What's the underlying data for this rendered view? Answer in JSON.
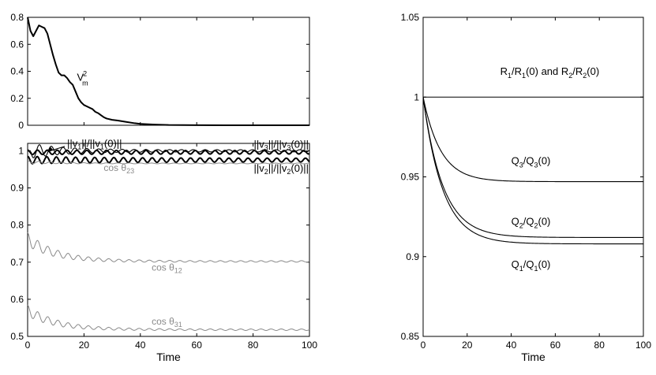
{
  "chart_data": [
    {
      "id": "top_left",
      "type": "line",
      "xlim": [
        0,
        100
      ],
      "ylim": [
        0,
        0.8
      ],
      "xticks": [
        0,
        20,
        40,
        60,
        80,
        100
      ],
      "xtick_labels": [
        "",
        "",
        "",
        "",
        "",
        ""
      ],
      "yticks": [
        0,
        0.2,
        0.4,
        0.6,
        0.8
      ],
      "ytick_labels": [
        "0",
        "0.2",
        "0.4",
        "0.6",
        "0.8"
      ],
      "xlabel": "",
      "ylabel": "",
      "grid": false,
      "series": [
        {
          "name": "V_m^2",
          "style": "thick-black",
          "x": [
            0,
            1,
            2,
            3,
            4,
            5,
            6,
            7,
            8,
            9,
            10,
            11,
            12,
            13,
            14,
            15,
            16,
            17,
            18,
            19,
            20,
            21,
            22,
            23,
            24,
            25,
            26,
            27,
            28,
            30,
            32,
            35,
            38,
            40,
            45,
            50,
            60,
            70,
            80,
            90,
            100
          ],
          "y": [
            0.8,
            0.7,
            0.66,
            0.7,
            0.74,
            0.73,
            0.72,
            0.68,
            0.6,
            0.52,
            0.45,
            0.39,
            0.37,
            0.37,
            0.35,
            0.32,
            0.3,
            0.25,
            0.2,
            0.17,
            0.15,
            0.14,
            0.13,
            0.12,
            0.1,
            0.09,
            0.075,
            0.06,
            0.05,
            0.04,
            0.035,
            0.025,
            0.015,
            0.01,
            0.005,
            0.002,
            0.001,
            0.0,
            0.0,
            0.0,
            0.0
          ]
        }
      ],
      "annotations": [
        {
          "id": "vm2",
          "base": "V",
          "sub": "m",
          "sup": "2",
          "x": 17.5,
          "y": 0.33,
          "style": "black"
        }
      ]
    },
    {
      "id": "bottom_left",
      "type": "line",
      "xlim": [
        0,
        100
      ],
      "ylim": [
        0.5,
        1.02
      ],
      "xticks": [
        0,
        20,
        40,
        60,
        80,
        100
      ],
      "xtick_labels": [
        "0",
        "20",
        "40",
        "60",
        "80",
        "100"
      ],
      "yticks": [
        0.5,
        0.6,
        0.7,
        0.8,
        0.9,
        1.0
      ],
      "ytick_labels": [
        "0.5",
        "0.6",
        "0.7",
        "0.8",
        "0.9",
        "1"
      ],
      "xlabel": "Time",
      "ylabel": "",
      "grid": false,
      "series": [
        {
          "name": "||v1||/||v1(0)||",
          "style": "black",
          "base": 1.0,
          "amp0": 0.022,
          "amp1": 0.003,
          "decay": 12,
          "period": 4.2,
          "x": [
            0,
            100
          ]
        },
        {
          "name": "||v3||/||v3(0)||",
          "style": "thick-black",
          "base": 0.996,
          "amp0": 0.006,
          "amp1": 0.0045,
          "decay": 40,
          "period": 3.5,
          "x": [
            0,
            100
          ]
        },
        {
          "name": "||v2||/||v2(0)||",
          "style": "thick-black",
          "base": 0.975,
          "amp0": 0.01,
          "amp1": 0.005,
          "decay": 30,
          "period": 3.4,
          "x": [
            0,
            100
          ]
        },
        {
          "name": "cos θ23",
          "style": "gray",
          "base": 0.966,
          "amp0": 0.004,
          "amp1": 0.001,
          "decay": 10,
          "period": 4,
          "x": [
            0,
            100
          ],
          "offset": [
            0.004,
            0.0
          ]
        },
        {
          "name": "cos θ12",
          "style": "gray",
          "base": 0.702,
          "amp0": 0.018,
          "amp1": 0.002,
          "decay": 14,
          "period": 3.6,
          "x": [
            0,
            100
          ],
          "offset": [
            0.06,
            0.0
          ]
        },
        {
          "name": "cos θ31",
          "style": "gray",
          "base": 0.518,
          "amp0": 0.015,
          "amp1": 0.002,
          "decay": 14,
          "period": 3.6,
          "x": [
            0,
            100
          ],
          "offset": [
            0.052,
            0.0
          ]
        }
      ],
      "annotations": [
        {
          "id": "v1",
          "text": "||v",
          "sub": "1",
          "tail": "||/||v",
          "sub2": "1",
          "tail2": "(0)||",
          "x": 14,
          "y": 1.01,
          "style": "black"
        },
        {
          "id": "v3",
          "text": "||v",
          "sub": "3",
          "tail": "||/||v",
          "sub2": "3",
          "tail2": "(0)||",
          "x": 90,
          "y": 1.008,
          "style": "black"
        },
        {
          "id": "v2",
          "text": "||v",
          "sub": "2",
          "tail": "||/||v",
          "sub2": "2",
          "tail2": "(0)||",
          "x": 90,
          "y": 0.944,
          "style": "black"
        },
        {
          "id": "c23",
          "text": "cos θ",
          "sub": "23",
          "x": 27,
          "y": 0.946,
          "style": "gray"
        },
        {
          "id": "c12",
          "text": "cos θ",
          "sub": "12",
          "x": 44,
          "y": 0.677,
          "style": "gray"
        },
        {
          "id": "c31",
          "text": "cos θ",
          "sub": "31",
          "x": 44,
          "y": 0.532,
          "style": "gray"
        }
      ]
    },
    {
      "id": "right",
      "type": "line",
      "xlim": [
        0,
        100
      ],
      "ylim": [
        0.85,
        1.05
      ],
      "xticks": [
        0,
        20,
        40,
        60,
        80,
        100
      ],
      "xtick_labels": [
        "0",
        "20",
        "40",
        "60",
        "80",
        "100"
      ],
      "yticks": [
        0.85,
        0.9,
        0.95,
        1.0,
        1.05
      ],
      "ytick_labels": [
        "0.85",
        "0.9",
        "0.95",
        "1",
        "1.05"
      ],
      "xlabel": "Time",
      "ylabel": "",
      "grid": false,
      "series": [
        {
          "name": "R1/R1(0) and R2/R2(0)",
          "style": "black",
          "base": 1.0,
          "start": 1.0,
          "tau": 10
        },
        {
          "name": "Q3/Q3(0)",
          "style": "black",
          "base": 0.947,
          "start": 1.0,
          "tau": 8
        },
        {
          "name": "Q2/Q2(0)",
          "style": "black",
          "base": 0.912,
          "start": 1.0,
          "tau": 9
        },
        {
          "name": "Q1/Q1(0)",
          "style": "black",
          "base": 0.908,
          "start": 1.0,
          "tau": 9
        }
      ],
      "annotations": [
        {
          "id": "r",
          "parts": [
            [
              "R",
              ""
            ],
            [
              "1",
              "sub"
            ],
            [
              "/R",
              ""
            ],
            [
              "1",
              "sub"
            ],
            [
              "(0) and R",
              ""
            ],
            [
              "2",
              "sub"
            ],
            [
              "/R",
              ""
            ],
            [
              "2",
              "sub"
            ],
            [
              "(0)",
              ""
            ]
          ],
          "x": 35,
          "y": 1.014
        },
        {
          "id": "q3",
          "parts": [
            [
              "Q",
              ""
            ],
            [
              "3",
              "sub"
            ],
            [
              "/Q",
              ""
            ],
            [
              "3",
              "sub"
            ],
            [
              "(0)",
              ""
            ]
          ],
          "x": 40,
          "y": 0.958
        },
        {
          "id": "q2",
          "parts": [
            [
              "Q",
              ""
            ],
            [
              "2",
              "sub"
            ],
            [
              "/Q",
              ""
            ],
            [
              "2",
              "sub"
            ],
            [
              "(0)",
              ""
            ]
          ],
          "x": 40,
          "y": 0.92
        },
        {
          "id": "q1",
          "parts": [
            [
              "Q",
              ""
            ],
            [
              "1",
              "sub"
            ],
            [
              "/Q",
              ""
            ],
            [
              "1",
              "sub"
            ],
            [
              "(0)",
              ""
            ]
          ],
          "x": 40,
          "y": 0.893
        }
      ]
    }
  ]
}
